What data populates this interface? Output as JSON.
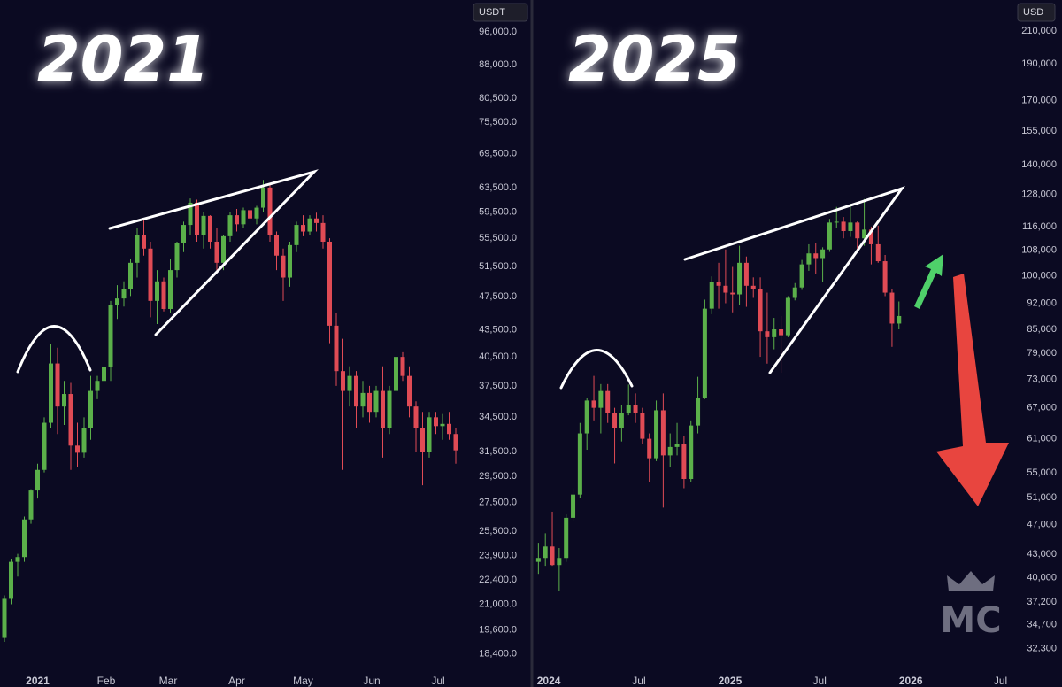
{
  "chart_data": [
    {
      "type": "candlestick",
      "title": "2021",
      "currency": "USDT",
      "log_scale": true,
      "grid": false,
      "up_color": "#5bb04a",
      "down_color": "#e04b55",
      "xlim": [
        -17,
        195
      ],
      "ylim": [
        17500,
        104500
      ],
      "xticks": [
        {
          "value": 0,
          "label": "2021"
        },
        {
          "value": 31,
          "label": "Feb"
        },
        {
          "value": 59,
          "label": "Mar"
        },
        {
          "value": 90,
          "label": "Apr"
        },
        {
          "value": 120,
          "label": "May"
        },
        {
          "value": 151,
          "label": "Jun"
        },
        {
          "value": 181,
          "label": "Jul"
        }
      ],
      "yticks": [
        {
          "value": 96000,
          "label": "96,000.0"
        },
        {
          "value": 88000,
          "label": "88,000.0"
        },
        {
          "value": 80500,
          "label": "80,500.0"
        },
        {
          "value": 75500,
          "label": "75,500.0"
        },
        {
          "value": 69500,
          "label": "69,500.0"
        },
        {
          "value": 63500,
          "label": "63,500.0"
        },
        {
          "value": 59500,
          "label": "59,500.0"
        },
        {
          "value": 55500,
          "label": "55,500.0"
        },
        {
          "value": 51500,
          "label": "51,500.0"
        },
        {
          "value": 47500,
          "label": "47,500.0"
        },
        {
          "value": 43500,
          "label": "43,500.0"
        },
        {
          "value": 40500,
          "label": "40,500.0"
        },
        {
          "value": 37500,
          "label": "37,500.0"
        },
        {
          "value": 34500,
          "label": "34,500.0"
        },
        {
          "value": 31500,
          "label": "31,500.0"
        },
        {
          "value": 29500,
          "label": "29,500.0"
        },
        {
          "value": 27500,
          "label": "27,500.0"
        },
        {
          "value": 25500,
          "label": "25,500.0"
        },
        {
          "value": 23900,
          "label": "23,900.0"
        },
        {
          "value": 22400,
          "label": "22,400.0"
        },
        {
          "value": 21000,
          "label": "21,000.0"
        },
        {
          "value": 19600,
          "label": "19,600.0"
        },
        {
          "value": 18400,
          "label": "18,400.0"
        }
      ],
      "x": [
        -15,
        -12,
        -9,
        -6,
        -3,
        0,
        3,
        6,
        9,
        12,
        15,
        18,
        21,
        24,
        27,
        30,
        33,
        36,
        39,
        42,
        45,
        48,
        51,
        54,
        57,
        60,
        63,
        66,
        69,
        72,
        75,
        78,
        81,
        84,
        87,
        90,
        93,
        96,
        99,
        102,
        105,
        108,
        111,
        114,
        117,
        120,
        123,
        126,
        129,
        132,
        135,
        138,
        141,
        144,
        147,
        150,
        153,
        156,
        159,
        162,
        165,
        168,
        171,
        174,
        177,
        180,
        183,
        186,
        189
      ],
      "open": [
        19200,
        21300,
        23500,
        23800,
        26300,
        28400,
        30000,
        34000,
        39800,
        35500,
        36700,
        32000,
        31400,
        33500,
        37000,
        38000,
        39400,
        46500,
        47300,
        48500,
        52000,
        56000,
        54000,
        47000,
        49500,
        46000,
        51000,
        54800,
        57500,
        61000,
        56000,
        58900,
        55000,
        52000,
        55800,
        59000,
        57600,
        59800,
        58500,
        60200,
        63500,
        56000,
        53000,
        50000,
        54500,
        57500,
        56500,
        58500,
        57800,
        55000,
        44000,
        39000,
        37000,
        38500,
        35500,
        36800,
        35000,
        37000,
        33500,
        37000,
        40500,
        38500,
        35500,
        33500,
        31500,
        34500,
        33700,
        33900,
        33000
      ],
      "high": [
        21500,
        23700,
        24000,
        26500,
        28500,
        30500,
        34500,
        41900,
        41500,
        38000,
        37800,
        34000,
        34500,
        38500,
        38500,
        40000,
        47000,
        49000,
        49500,
        52500,
        57000,
        58300,
        55000,
        51000,
        50000,
        52500,
        55000,
        58000,
        61700,
        61500,
        59500,
        59000,
        57000,
        56000,
        59500,
        60000,
        60200,
        61000,
        60500,
        64800,
        64000,
        56500,
        54000,
        55000,
        58000,
        59000,
        59000,
        59400,
        59000,
        55500,
        45500,
        42500,
        39500,
        39000,
        38000,
        37500,
        37500,
        39500,
        37500,
        41300,
        41000,
        39500,
        36000,
        35000,
        35000,
        35000,
        34800,
        35000,
        33500
      ],
      "low": [
        19000,
        21000,
        22600,
        23500,
        26000,
        27800,
        29800,
        33500,
        33000,
        33800,
        30000,
        30200,
        31000,
        32500,
        36200,
        36000,
        38000,
        44800,
        46300,
        47600,
        50000,
        53000,
        45000,
        44200,
        45700,
        45500,
        50000,
        53500,
        56000,
        55000,
        54000,
        54000,
        50500,
        51000,
        55000,
        56500,
        57000,
        57500,
        57600,
        59500,
        55000,
        51000,
        47000,
        48800,
        53500,
        55800,
        56000,
        56500,
        54000,
        42000,
        37500,
        30000,
        35500,
        33500,
        34500,
        34000,
        34500,
        31000,
        33000,
        36000,
        38000,
        34500,
        31500,
        28800,
        31000,
        33000,
        32500,
        32500,
        30500
      ],
      "close": [
        21300,
        23500,
        23800,
        26300,
        28400,
        30000,
        34000,
        39800,
        35500,
        36700,
        32000,
        31400,
        33500,
        37000,
        38000,
        39400,
        46500,
        47300,
        48500,
        52000,
        56000,
        54000,
        47000,
        49500,
        46000,
        51000,
        54800,
        57500,
        61000,
        56000,
        58900,
        55000,
        52000,
        55800,
        59000,
        57600,
        59800,
        58500,
        60200,
        63500,
        56000,
        53000,
        50000,
        54500,
        57500,
        56500,
        58500,
        57800,
        55000,
        44000,
        39000,
        37000,
        38500,
        35500,
        36800,
        35000,
        37000,
        33500,
        37000,
        40500,
        38500,
        35500,
        33500,
        31500,
        34500,
        33700,
        33900,
        33000,
        31600
      ]
    },
    {
      "type": "candlestick",
      "title": "2025",
      "currency": "USD",
      "log_scale": true,
      "grid": false,
      "up_color": "#5bb04a",
      "down_color": "#e04b55",
      "xlim": [
        -27,
        929
      ],
      "ylim": [
        30000,
        230700
      ],
      "xticks": [
        {
          "value": 0,
          "label": "2024"
        },
        {
          "value": 182,
          "label": "Jul"
        },
        {
          "value": 366,
          "label": "2025"
        },
        {
          "value": 547,
          "label": "Jul"
        },
        {
          "value": 731,
          "label": "2026"
        },
        {
          "value": 912,
          "label": "Jul"
        }
      ],
      "yticks": [
        {
          "value": 210000,
          "label": "210,000"
        },
        {
          "value": 190000,
          "label": "190,000"
        },
        {
          "value": 170000,
          "label": "170,000"
        },
        {
          "value": 155000,
          "label": "155,000"
        },
        {
          "value": 140000,
          "label": "140,000"
        },
        {
          "value": 128000,
          "label": "128,000"
        },
        {
          "value": 116000,
          "label": "116,000"
        },
        {
          "value": 108000,
          "label": "108,000"
        },
        {
          "value": 100000,
          "label": "100,000"
        },
        {
          "value": 92000,
          "label": "92,000"
        },
        {
          "value": 85000,
          "label": "85,000"
        },
        {
          "value": 79000,
          "label": "79,000"
        },
        {
          "value": 73000,
          "label": "73,000"
        },
        {
          "value": 67000,
          "label": "67,000"
        },
        {
          "value": 61000,
          "label": "61,000"
        },
        {
          "value": 55000,
          "label": "55,000"
        },
        {
          "value": 51000,
          "label": "51,000"
        },
        {
          "value": 47000,
          "label": "47,000"
        },
        {
          "value": 43000,
          "label": "43,000"
        },
        {
          "value": 40000,
          "label": "40,000"
        },
        {
          "value": 37200,
          "label": "37,200"
        },
        {
          "value": 34700,
          "label": "34,700"
        },
        {
          "value": 32300,
          "label": "32,300"
        }
      ],
      "x": [
        -21,
        -7,
        7,
        21,
        35,
        49,
        63,
        77,
        91,
        105,
        119,
        133,
        147,
        161,
        175,
        189,
        203,
        217,
        231,
        245,
        259,
        273,
        287,
        301,
        315,
        329,
        343,
        357,
        371,
        385,
        399,
        413,
        427,
        441,
        455,
        469,
        483,
        497,
        511,
        525,
        539,
        553,
        567,
        581,
        595,
        609,
        623,
        637,
        651,
        665,
        679,
        693,
        707
      ],
      "open": [
        42000,
        42500,
        44000,
        41600,
        42500,
        48000,
        51500,
        62000,
        68500,
        67000,
        70500,
        66000,
        63000,
        66000,
        67500,
        66000,
        61000,
        57500,
        66500,
        58000,
        59500,
        60000,
        54000,
        63500,
        69000,
        90500,
        98000,
        97000,
        95000,
        94500,
        104000,
        97000,
        96000,
        84500,
        83000,
        85000,
        83500,
        93500,
        96500,
        103500,
        107000,
        105500,
        108300,
        117500,
        117800,
        114500,
        117500,
        112000,
        115000,
        110000,
        104500,
        95000,
        86500
      ],
      "high": [
        44500,
        45800,
        48900,
        43800,
        48500,
        52500,
        64000,
        69000,
        73800,
        72000,
        72000,
        67000,
        67500,
        71900,
        70000,
        67000,
        62000,
        68500,
        70000,
        62000,
        64000,
        61500,
        64500,
        73600,
        93000,
        99800,
        104000,
        108300,
        102700,
        109500,
        106000,
        99500,
        99500,
        95000,
        88000,
        88500,
        94000,
        97800,
        104900,
        110000,
        110500,
        109000,
        118800,
        123200,
        119500,
        124400,
        117900,
        126200,
        116000,
        116400,
        106500,
        96000,
        92500
      ],
      "low": [
        40500,
        41500,
        41500,
        38500,
        42000,
        47500,
        51000,
        59000,
        64500,
        62000,
        64000,
        56600,
        60500,
        65500,
        64000,
        60000,
        53500,
        57000,
        49500,
        56000,
        58000,
        52500,
        53500,
        62000,
        68800,
        89000,
        90500,
        92000,
        89500,
        91500,
        91000,
        93500,
        78200,
        76600,
        80000,
        74500,
        83000,
        92800,
        95800,
        101500,
        100500,
        98200,
        107500,
        115700,
        112000,
        112500,
        108000,
        109500,
        103500,
        104000,
        94000,
        80600,
        85000
      ],
      "close": [
        42500,
        44000,
        41600,
        42500,
        48000,
        51500,
        62000,
        68500,
        67000,
        70500,
        66000,
        63000,
        66000,
        67500,
        66000,
        61000,
        57500,
        66500,
        58000,
        59500,
        60000,
        54000,
        63500,
        69000,
        90500,
        98000,
        97000,
        95000,
        94500,
        104000,
        97000,
        96000,
        84500,
        83000,
        85000,
        83500,
        93500,
        96500,
        103500,
        107000,
        105500,
        108300,
        117500,
        117800,
        114500,
        117500,
        112000,
        115000,
        110000,
        104500,
        95000,
        86500,
        88500
      ]
    }
  ],
  "watermark": "MC"
}
